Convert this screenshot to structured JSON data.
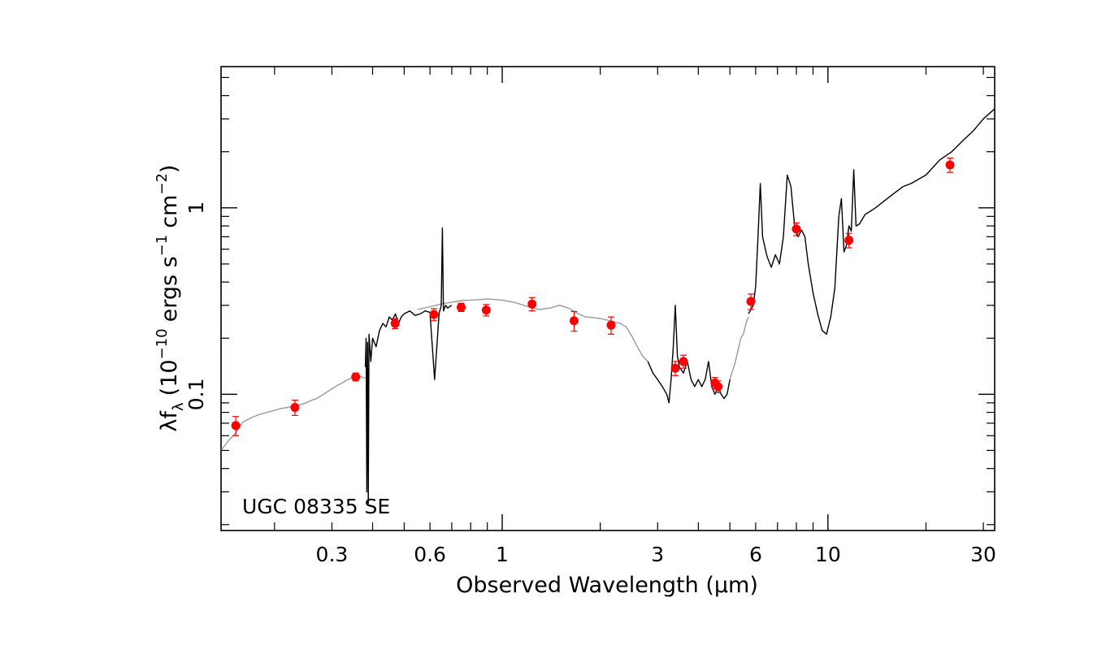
{
  "chart_data": {
    "type": "scatter",
    "title": "",
    "annotation": "UGC 08335 SE",
    "xlabel": "Observed Wavelength (μm)",
    "ylabel": "λf",
    "ylabel_sub": "λ",
    "ylabel_unit_prefix": "(10",
    "ylabel_exp1": "−10",
    "ylabel_mid": "ergs s",
    "ylabel_exp2": "−1",
    "ylabel_mid2": "cm",
    "ylabel_exp3": "−2",
    "ylabel_close": ")",
    "xscale": "log",
    "yscale": "log",
    "xlim": [
      0.137,
      32.5
    ],
    "ylim": [
      0.0186,
      5.72
    ],
    "xticks": [
      {
        "value": 0.3,
        "label": "0.3"
      },
      {
        "value": 0.6,
        "label": "0.6"
      },
      {
        "value": 1,
        "label": "1"
      },
      {
        "value": 3,
        "label": "3"
      },
      {
        "value": 6,
        "label": "6"
      },
      {
        "value": 10,
        "label": "10"
      },
      {
        "value": 30,
        "label": "30"
      }
    ],
    "yticks": [
      {
        "value": 0.1,
        "label": "0.1"
      },
      {
        "value": 1,
        "label": "1"
      }
    ],
    "grid": false,
    "colors": {
      "points": "#ff0000",
      "observed_spectrum": "#000000",
      "model_spectrum": "#999999"
    },
    "series": [
      {
        "kind": "model_spectrum",
        "style": "line-gray",
        "x": [
          0.137,
          0.145,
          0.152,
          0.16,
          0.17,
          0.18,
          0.19,
          0.2,
          0.21,
          0.22,
          0.23,
          0.24,
          0.25,
          0.26,
          0.27,
          0.28,
          0.29,
          0.3,
          0.31,
          0.32,
          0.33,
          0.34,
          0.35,
          0.36,
          0.37,
          0.38
        ],
        "y": [
          0.05,
          0.057,
          0.062,
          0.071,
          0.075,
          0.078,
          0.08,
          0.082,
          0.084,
          0.085,
          0.087,
          0.088,
          0.09,
          0.093,
          0.095,
          0.099,
          0.103,
          0.107,
          0.111,
          0.114,
          0.118,
          0.121,
          0.123,
          0.125,
          0.124,
          0.122
        ]
      },
      {
        "kind": "model_spectrum",
        "style": "line-gray",
        "x": [
          0.55,
          0.6,
          0.65,
          0.7,
          0.75,
          0.8,
          0.85,
          0.9,
          1.0,
          1.1,
          1.2,
          1.3,
          1.4,
          1.5,
          1.6,
          1.7,
          1.8,
          1.9,
          2.0,
          2.1,
          2.2,
          2.3,
          2.4,
          2.5,
          2.6,
          2.7,
          2.8
        ],
        "y": [
          0.285,
          0.295,
          0.305,
          0.312,
          0.318,
          0.32,
          0.322,
          0.325,
          0.32,
          0.31,
          0.295,
          0.285,
          0.29,
          0.3,
          0.29,
          0.272,
          0.26,
          0.258,
          0.255,
          0.25,
          0.245,
          0.24,
          0.23,
          0.205,
          0.18,
          0.16,
          0.15
        ]
      },
      {
        "kind": "model_spectrum",
        "style": "line-gray",
        "x": [
          5.0,
          5.2,
          5.4,
          5.5,
          5.6,
          5.7
        ],
        "y": [
          0.12,
          0.15,
          0.2,
          0.21,
          0.24,
          0.26
        ]
      },
      {
        "kind": "observed_spectrum",
        "style": "line-black",
        "x": [
          0.38,
          0.382,
          0.384,
          0.386,
          0.388,
          0.39,
          0.395,
          0.4,
          0.41,
          0.42,
          0.43,
          0.44,
          0.45,
          0.46,
          0.47,
          0.48,
          0.49,
          0.5,
          0.52,
          0.54,
          0.56,
          0.58,
          0.6,
          0.62,
          0.64,
          0.65,
          0.655,
          0.66,
          0.67,
          0.68,
          0.7
        ],
        "y": [
          0.14,
          0.2,
          0.03,
          0.19,
          0.026,
          0.21,
          0.15,
          0.2,
          0.18,
          0.22,
          0.24,
          0.23,
          0.26,
          0.25,
          0.27,
          0.24,
          0.26,
          0.27,
          0.28,
          0.265,
          0.27,
          0.28,
          0.275,
          0.12,
          0.27,
          0.3,
          0.78,
          0.28,
          0.3,
          0.29,
          0.3
        ]
      },
      {
        "kind": "observed_spectrum",
        "style": "line-black",
        "x": [
          2.8,
          2.9,
          3.0,
          3.1,
          3.2,
          3.25,
          3.3,
          3.35,
          3.4,
          3.45,
          3.5,
          3.6,
          3.7,
          3.8,
          3.9,
          4.0,
          4.1,
          4.2,
          4.3,
          4.4,
          4.5,
          4.6,
          4.7,
          4.8,
          4.9,
          5.0
        ],
        "y": [
          0.15,
          0.13,
          0.12,
          0.11,
          0.1,
          0.09,
          0.12,
          0.18,
          0.3,
          0.16,
          0.14,
          0.13,
          0.15,
          0.12,
          0.11,
          0.12,
          0.11,
          0.12,
          0.15,
          0.11,
          0.1,
          0.11,
          0.1,
          0.095,
          0.1,
          0.12
        ]
      },
      {
        "kind": "observed_spectrum",
        "style": "line-black",
        "x": [
          5.7,
          5.9,
          6.0,
          6.1,
          6.2,
          6.3,
          6.5,
          6.7,
          6.9,
          7.1,
          7.3,
          7.5,
          7.7,
          7.9,
          8.1,
          8.3,
          8.5,
          8.7,
          9.0,
          9.3,
          9.6,
          9.9,
          10.2,
          10.5,
          10.8,
          11.0,
          11.2,
          11.4,
          11.6,
          11.8,
          12.0,
          12.2,
          12.5,
          13,
          14,
          15,
          16,
          17,
          18,
          20,
          22,
          24,
          26,
          28,
          30,
          32.5
        ],
        "y": [
          0.27,
          0.3,
          0.38,
          0.7,
          1.35,
          0.7,
          0.55,
          0.48,
          0.56,
          0.5,
          0.7,
          1.5,
          1.3,
          0.8,
          0.7,
          0.76,
          0.7,
          0.5,
          0.35,
          0.27,
          0.22,
          0.21,
          0.26,
          0.37,
          0.9,
          1.12,
          0.58,
          0.63,
          0.8,
          0.75,
          1.6,
          0.8,
          0.82,
          0.92,
          1.0,
          1.1,
          1.2,
          1.3,
          1.35,
          1.5,
          1.8,
          2.0,
          2.3,
          2.6,
          3.0,
          3.4
        ]
      }
    ],
    "points": [
      {
        "x": 0.152,
        "y": 0.068,
        "err": 0.008
      },
      {
        "x": 0.231,
        "y": 0.085,
        "err": 0.008
      },
      {
        "x": 0.355,
        "y": 0.124,
        "err": 0.006
      },
      {
        "x": 0.469,
        "y": 0.24,
        "err": 0.015
      },
      {
        "x": 0.617,
        "y": 0.268,
        "err": 0.02
      },
      {
        "x": 0.748,
        "y": 0.293,
        "err": 0.015
      },
      {
        "x": 0.893,
        "y": 0.283,
        "err": 0.02
      },
      {
        "x": 1.235,
        "y": 0.305,
        "err": 0.025
      },
      {
        "x": 1.662,
        "y": 0.248,
        "err": 0.03
      },
      {
        "x": 2.159,
        "y": 0.235,
        "err": 0.025
      },
      {
        "x": 3.4,
        "y": 0.138,
        "err": 0.012
      },
      {
        "x": 3.6,
        "y": 0.15,
        "err": 0.012
      },
      {
        "x": 4.5,
        "y": 0.115,
        "err": 0.008
      },
      {
        "x": 4.6,
        "y": 0.11,
        "err": 0.008
      },
      {
        "x": 5.8,
        "y": 0.315,
        "err": 0.03
      },
      {
        "x": 8.0,
        "y": 0.77,
        "err": 0.06
      },
      {
        "x": 11.6,
        "y": 0.67,
        "err": 0.06
      },
      {
        "x": 23.7,
        "y": 1.7,
        "err": 0.15
      }
    ]
  }
}
